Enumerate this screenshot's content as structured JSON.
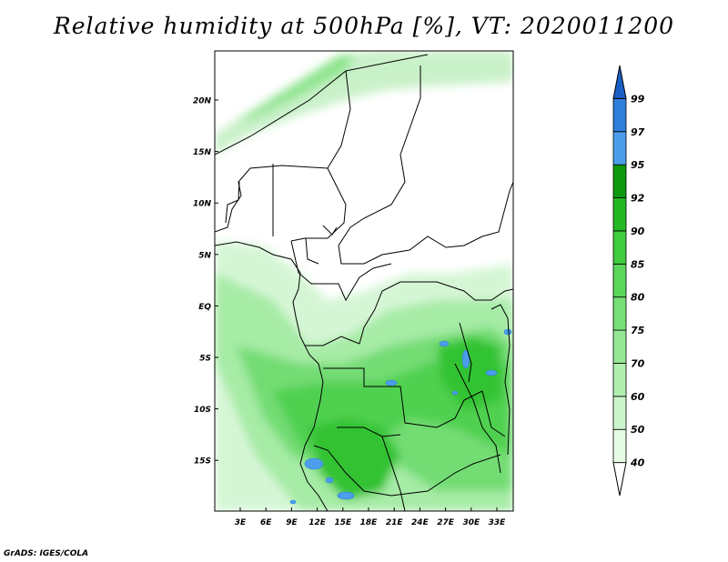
{
  "title": "Relative humidity at 500hPa [%], VT: 2020011200",
  "credit": "GrADS: IGES/COLA",
  "lat_labels": [
    "20N",
    "15N",
    "10N",
    "5N",
    "EQ",
    "5S",
    "10S",
    "15S"
  ],
  "lon_labels": [
    "3E",
    "6E",
    "9E",
    "12E",
    "15E",
    "18E",
    "21E",
    "24E",
    "27E",
    "30E",
    "33E"
  ],
  "colorbar": {
    "levels": [
      "40",
      "50",
      "60",
      "70",
      "75",
      "80",
      "85",
      "90",
      "92",
      "95",
      "97",
      "99"
    ],
    "colors": [
      "#ffffff",
      "#e6fbe6",
      "#cdf5cd",
      "#b1efb1",
      "#95e795",
      "#78df78",
      "#5bd65b",
      "#3fcc3f",
      "#24b924",
      "#0f990f",
      "#4c9eea",
      "#2e7fdc",
      "#1a5fc4"
    ]
  },
  "colors": {
    "land_border": "#000000",
    "frame": "#000000"
  }
}
